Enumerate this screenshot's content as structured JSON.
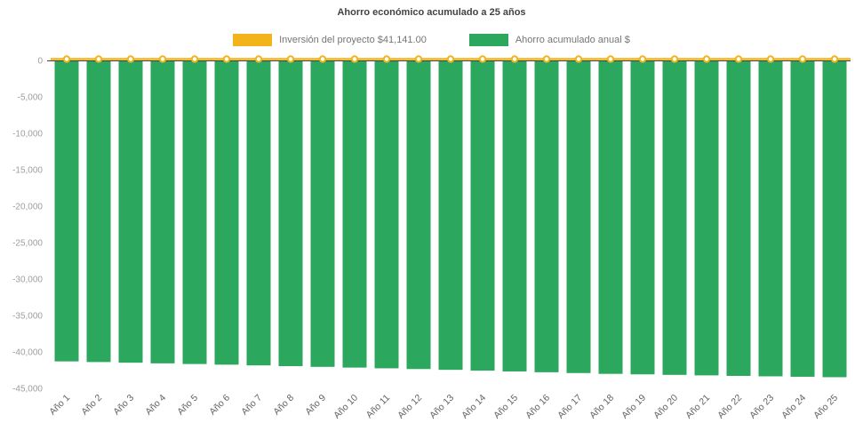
{
  "title": "Ahorro económico acumulado a 25 años",
  "legend": {
    "items": [
      {
        "label": "Inversión del proyecto $41,141.00",
        "color": "#F2B31B"
      },
      {
        "label": "Ahorro acumulado anual $",
        "color": "#2BA85E"
      }
    ]
  },
  "chart_data": {
    "type": "bar",
    "title": "Ahorro económico acumulado a 25 años",
    "categories": [
      "Año 1",
      "Año 2",
      "Año 3",
      "Año 4",
      "Año 5",
      "Año 6",
      "Año 7",
      "Año 8",
      "Año 9",
      "Año 10",
      "Año 11",
      "Año 12",
      "Año 13",
      "Año 14",
      "Año 15",
      "Año 16",
      "Año 17",
      "Año 18",
      "Año 19",
      "Año 20",
      "Año 21",
      "Año 22",
      "Año 23",
      "Año 24",
      "Año 25"
    ],
    "series": [
      {
        "name": "Inversión del proyecto $41,141.00",
        "type": "line",
        "color": "#F2B31B",
        "values": [
          0,
          0,
          0,
          0,
          0,
          0,
          0,
          0,
          0,
          0,
          0,
          0,
          0,
          0,
          0,
          0,
          0,
          0,
          0,
          0,
          0,
          0,
          0,
          0,
          0
        ]
      },
      {
        "name": "Ahorro acumulado anual $",
        "type": "bar",
        "color": "#2BA85E",
        "values": [
          -41300,
          -41390,
          -41480,
          -41570,
          -41660,
          -41750,
          -41850,
          -41950,
          -42050,
          -42150,
          -42250,
          -42350,
          -42460,
          -42570,
          -42680,
          -42790,
          -42900,
          -43010,
          -43080,
          -43150,
          -43220,
          -43290,
          -43350,
          -43410,
          -43470
        ]
      }
    ],
    "ylim": [
      -45000,
      0
    ],
    "yticks": [
      0,
      -5000,
      -10000,
      -15000,
      -20000,
      -25000,
      -30000,
      -35000,
      -40000,
      -45000
    ],
    "ytick_labels": [
      "0",
      "-5,000",
      "-10,000",
      "-15,000",
      "-20,000",
      "-25,000",
      "-30,000",
      "-35,000",
      "-40,000",
      "-45,000"
    ],
    "grid": false,
    "legend_position": "top",
    "axis_color": "#424242"
  }
}
